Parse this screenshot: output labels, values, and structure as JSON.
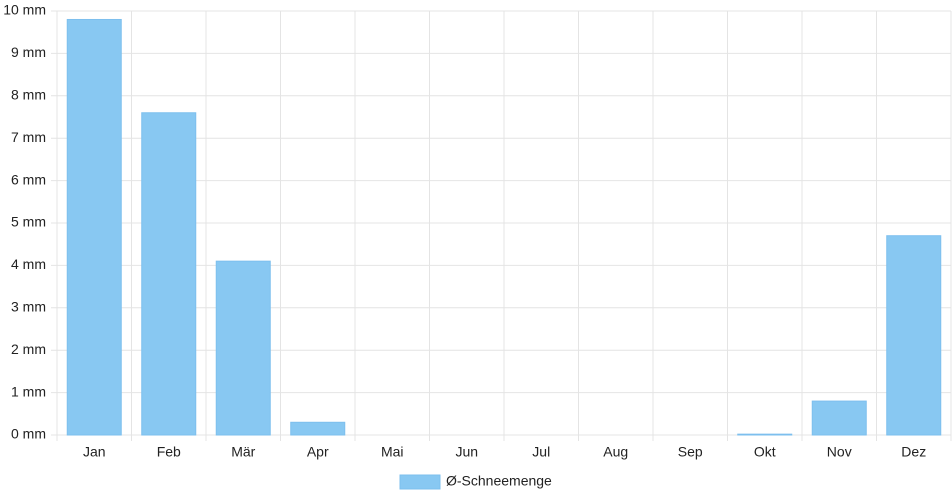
{
  "chart_data": {
    "type": "bar",
    "categories": [
      "Jan",
      "Feb",
      "Mär",
      "Apr",
      "Mai",
      "Jun",
      "Jul",
      "Aug",
      "Sep",
      "Okt",
      "Nov",
      "Dez"
    ],
    "series": [
      {
        "name": "Ø-Schneemenge",
        "color": "#88c8f2",
        "values": [
          9.8,
          7.6,
          4.1,
          0.3,
          0,
          0,
          0,
          0,
          0,
          0.02,
          0.8,
          4.7
        ]
      }
    ],
    "ylim": [
      0,
      10
    ],
    "yticks": [
      {
        "value": 0,
        "label": "0 mm"
      },
      {
        "value": 1,
        "label": "1 mm"
      },
      {
        "value": 2,
        "label": "2 mm"
      },
      {
        "value": 3,
        "label": "3 mm"
      },
      {
        "value": 4,
        "label": "4 mm"
      },
      {
        "value": 5,
        "label": "5 mm"
      },
      {
        "value": 6,
        "label": "6 mm"
      },
      {
        "value": 7,
        "label": "7 mm"
      },
      {
        "value": 8,
        "label": "8 mm"
      },
      {
        "value": 9,
        "label": "9 mm"
      },
      {
        "value": 10,
        "label": "10 mm"
      }
    ],
    "grid": true,
    "legend": "bottom"
  }
}
